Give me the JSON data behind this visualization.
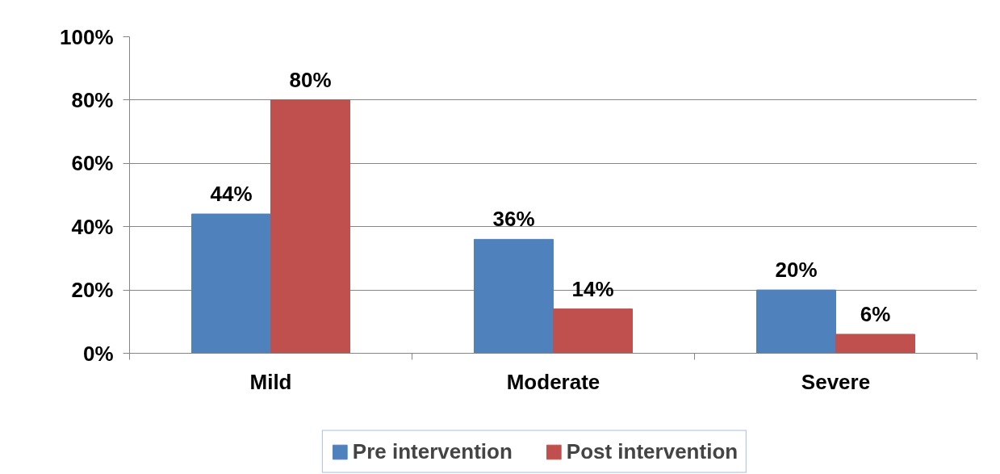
{
  "chart_data": {
    "type": "bar",
    "categories": [
      "Mild",
      "Moderate",
      "Severe"
    ],
    "series": [
      {
        "name": "Pre intervention",
        "color": "#4f81bd",
        "values": [
          44,
          36,
          20
        ],
        "value_labels": [
          "44%",
          "36%",
          "20%"
        ]
      },
      {
        "name": "Post intervention",
        "color": "#c0504d",
        "values": [
          80,
          14,
          6
        ],
        "value_labels": [
          "80%",
          "14%",
          "6%"
        ]
      }
    ],
    "ylim": [
      0,
      100
    ],
    "yticks": [
      {
        "value": 0,
        "label": "0%"
      },
      {
        "value": 20,
        "label": "20%"
      },
      {
        "value": 40,
        "label": "40%"
      },
      {
        "value": 60,
        "label": "60%"
      },
      {
        "value": 80,
        "label": "80%"
      },
      {
        "value": 100,
        "label": "100%"
      }
    ],
    "grid": "y",
    "legend": "bottom"
  }
}
